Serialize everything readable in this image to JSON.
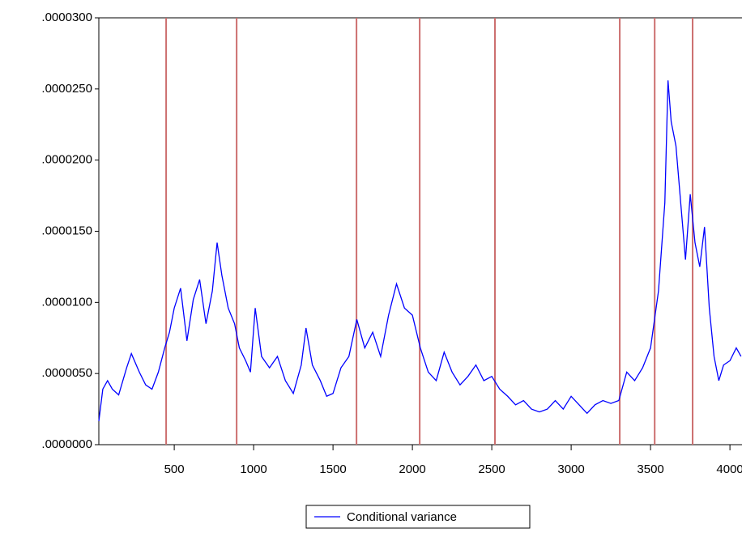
{
  "chart_data": {
    "type": "line",
    "x": [
      25,
      50,
      80,
      110,
      150,
      200,
      230,
      280,
      320,
      360,
      400,
      440,
      470,
      500,
      540,
      580,
      620,
      660,
      700,
      740,
      770,
      800,
      840,
      880,
      910,
      950,
      980,
      1010,
      1050,
      1100,
      1150,
      1200,
      1250,
      1300,
      1330,
      1370,
      1420,
      1460,
      1500,
      1550,
      1600,
      1650,
      1700,
      1750,
      1800,
      1850,
      1900,
      1950,
      2000,
      2050,
      2100,
      2150,
      2200,
      2250,
      2300,
      2350,
      2400,
      2450,
      2500,
      2550,
      2600,
      2650,
      2700,
      2750,
      2800,
      2850,
      2900,
      2950,
      3000,
      3050,
      3100,
      3150,
      3200,
      3250,
      3300,
      3350,
      3400,
      3450,
      3500,
      3550,
      3590,
      3610,
      3630,
      3660,
      3690,
      3720,
      3750,
      3780,
      3810,
      3840,
      3870,
      3900,
      3930,
      3960,
      4000,
      4040,
      4070
    ],
    "series": [
      {
        "name": "Conditional variance",
        "color": "#0000ff",
        "values": [
          1.65e-06,
          3.9e-06,
          4.5e-06,
          3.9e-06,
          3.5e-06,
          5.4e-06,
          6.4e-06,
          5.1e-06,
          4.2e-06,
          3.9e-06,
          5.1e-06,
          6.8e-06,
          7.9e-06,
          9.6e-06,
          1.1e-05,
          7.3e-06,
          1.02e-05,
          1.16e-05,
          8.5e-06,
          1.08e-05,
          1.42e-05,
          1.19e-05,
          9.6e-06,
          8.5e-06,
          6.8e-06,
          5.9e-06,
          5.1e-06,
          9.6e-06,
          6.2e-06,
          5.4e-06,
          6.2e-06,
          4.5e-06,
          3.6e-06,
          5.6e-06,
          8.2e-06,
          5.6e-06,
          4.5e-06,
          3.4e-06,
          3.6e-06,
          5.4e-06,
          6.2e-06,
          8.8e-06,
          6.8e-06,
          7.9e-06,
          6.2e-06,
          9.1e-06,
          1.13e-05,
          9.6e-06,
          9.1e-06,
          6.8e-06,
          5.1e-06,
          4.5e-06,
          6.5e-06,
          5.1e-06,
          4.2e-06,
          4.8e-06,
          5.6e-06,
          4.5e-06,
          4.8e-06,
          3.9e-06,
          3.4e-06,
          2.8e-06,
          3.1e-06,
          2.5e-06,
          2.3e-06,
          2.5e-06,
          3.1e-06,
          2.5e-06,
          3.4e-06,
          2.8e-06,
          2.2e-06,
          2.8e-06,
          3.1e-06,
          2.9e-06,
          3.1e-06,
          5.1e-06,
          4.5e-06,
          5.4e-06,
          6.8e-06,
          1.08e-05,
          1.7e-05,
          2.56e-05,
          2.27e-05,
          2.1e-05,
          1.7e-05,
          1.3e-05,
          1.76e-05,
          1.42e-05,
          1.25e-05,
          1.53e-05,
          9.6e-06,
          6.2e-06,
          4.5e-06,
          5.6e-06,
          5.9e-06,
          6.8e-06,
          6.2e-06
        ]
      }
    ],
    "breaks": [
      449,
      893,
      1648,
      2046,
      2520,
      3306,
      3526,
      3765
    ],
    "break_color": "#cc6e6e",
    "xlim": [
      25,
      4076
    ],
    "xticks": [
      500,
      1000,
      1500,
      2000,
      2500,
      3000,
      3500,
      4000
    ],
    "ylim": [
      0,
      3e-05
    ],
    "yticks": [
      {
        "value": 0,
        "label": ".0000000"
      },
      {
        "value": 5e-06,
        "label": ".0000050"
      },
      {
        "value": 1e-05,
        "label": ".0000100"
      },
      {
        "value": 1.5e-05,
        "label": ".0000150"
      },
      {
        "value": 2e-05,
        "label": ".0000200"
      },
      {
        "value": 2.5e-05,
        "label": ".0000250"
      },
      {
        "value": 3e-05,
        "label": ".0000300"
      }
    ],
    "legend": "bottom"
  }
}
